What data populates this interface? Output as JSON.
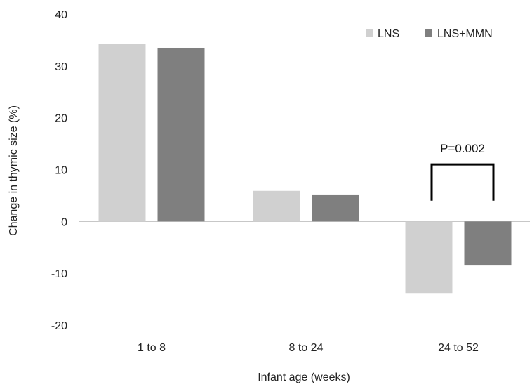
{
  "chart_data": {
    "type": "bar",
    "categories": [
      "1 to 8",
      "8 to 24",
      "24 to 52"
    ],
    "series": [
      {
        "name": "LNS",
        "values": [
          34.3,
          5.9,
          -13.8
        ],
        "color": "#d0d0d0"
      },
      {
        "name": "LNS+MMN",
        "values": [
          33.5,
          5.2,
          -8.5
        ],
        "color": "#7f7f7f"
      }
    ],
    "ylim": [
      -20,
      40
    ],
    "yticks": [
      -20,
      -10,
      0,
      10,
      20,
      30,
      40
    ],
    "ytick_labels": [
      "-20",
      "-10",
      "0",
      "10",
      "20",
      "30",
      "40"
    ],
    "ylabel": "Change in thymic size (%)",
    "xlabel": "Infant age (weeks)",
    "legend_position": "top-right",
    "grid": false,
    "annotations": [
      {
        "text": "P=0.002",
        "category": "24 to 52",
        "type": "significance-bracket",
        "bracket_level": 11,
        "bracket_end": 4
      }
    ]
  }
}
